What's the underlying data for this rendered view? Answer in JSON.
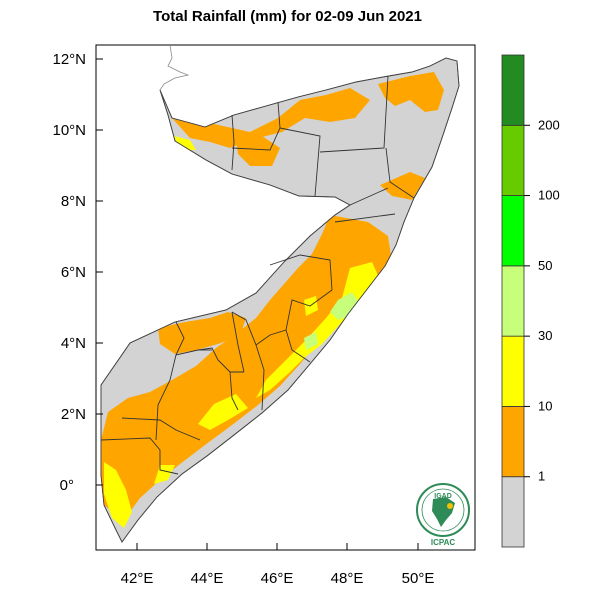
{
  "title": "Total Rainfall (mm) for 02-09 Jun 2021",
  "map": {
    "lat_labels": [
      "12°N",
      "10°N",
      "8°N",
      "6°N",
      "4°N",
      "2°N",
      "0°"
    ],
    "lon_labels": [
      "42°E",
      "44°E",
      "46°E",
      "48°E",
      "50°E"
    ],
    "lat_range": [
      -1.7,
      12.2
    ],
    "lon_range": [
      41.0,
      51.4
    ]
  },
  "legend": {
    "bins": [
      {
        "color": "#d3d3d3"
      },
      {
        "color": "#ffa500",
        "lower_label": "1"
      },
      {
        "color": "#ffff00",
        "lower_label": "10"
      },
      {
        "color": "#c8ff7a",
        "lower_label": "30"
      },
      {
        "color": "#00ff00",
        "lower_label": "50"
      },
      {
        "color": "#66cc00",
        "lower_label": "100"
      },
      {
        "color": "#228b22",
        "lower_label": "200"
      }
    ]
  },
  "logo": {
    "top_text": "IGAD",
    "bottom_text": "ICPAC"
  }
}
